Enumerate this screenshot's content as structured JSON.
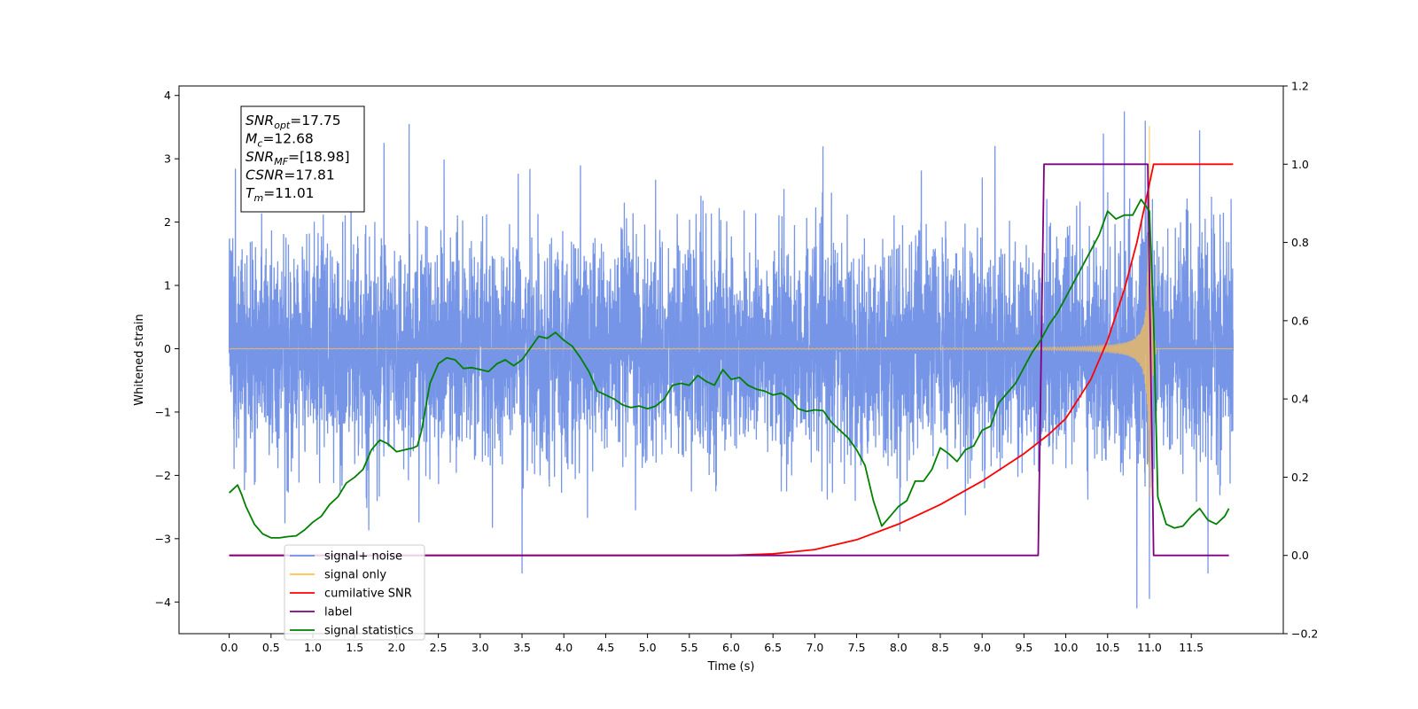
{
  "chart_data": {
    "type": "line",
    "xlabel": "Time (s)",
    "ylabel": "Whitened strain",
    "xlim": [
      -0.6,
      12.6
    ],
    "ylim": [
      -4.5,
      4.15
    ],
    "y2lim": [
      -0.2,
      1.2
    ],
    "x_ticks": [
      "0.0",
      "0.5",
      "1.0",
      "1.5",
      "2.0",
      "2.5",
      "3.0",
      "3.5",
      "4.0",
      "4.5",
      "5.0",
      "5.5",
      "6.0",
      "6.5",
      "7.0",
      "7.5",
      "8.0",
      "8.5",
      "9.0",
      "9.5",
      "10.0",
      "10.5",
      "11.0",
      "11.5"
    ],
    "y_ticks": [
      "4",
      "3",
      "2",
      "1",
      "0",
      "−1",
      "−2",
      "−3",
      "−4"
    ],
    "y2_ticks": [
      "1.2",
      "1.0",
      "0.8",
      "0.6",
      "0.4",
      "0.2",
      "0.0",
      "−0.2"
    ],
    "grid": false,
    "legend_position": "bottom-left",
    "info_box": [
      {
        "sym": "SNR",
        "sub": "opt",
        "value": "=17.75"
      },
      {
        "sym": "M",
        "sub": "c",
        "value": "=12.68"
      },
      {
        "sym": "SNR",
        "sub": "MF",
        "value": "=[18.98]"
      },
      {
        "sym": "CSNR",
        "sub": "",
        "value": "=17.81"
      },
      {
        "sym": "T",
        "sub": "m",
        "value": "=11.01"
      }
    ],
    "legend": [
      {
        "label": "signal+ noise",
        "color": "#6f8fe6"
      },
      {
        "label": "signal only",
        "color": "#ffc04d"
      },
      {
        "label": "cumilative SNR",
        "color": "#ff0000"
      },
      {
        "label": "label",
        "color": "#800080"
      },
      {
        "label": "signal statistics",
        "color": "#008000"
      }
    ],
    "series": [
      {
        "name": "signal+ noise",
        "axis": "left",
        "color": "#6f8fe6",
        "x_range": [
          0.0,
          12.0
        ],
        "noise_std": 0.85,
        "spikes": [
          {
            "x": 3.5,
            "y": -3.55
          },
          {
            "x": 10.85,
            "y": -4.1
          },
          {
            "x": 10.7,
            "y": 3.75
          },
          {
            "x": 11.0,
            "y": -3.95
          },
          {
            "x": 11.7,
            "y": -3.55
          },
          {
            "x": 2.15,
            "y": 3.55
          },
          {
            "x": 10.95,
            "y": 3.6
          },
          {
            "x": 11.6,
            "y": 3.45
          },
          {
            "x": 1.85,
            "y": 3.25
          },
          {
            "x": 10.45,
            "y": 3.4
          }
        ]
      },
      {
        "name": "signal only",
        "axis": "left",
        "color": "#ffc04d",
        "model": "chirp",
        "merger_time": 11.0,
        "peak_amplitude": 3.6
      },
      {
        "name": "cumilative SNR",
        "axis": "right",
        "color": "#ff0000",
        "x": [
          0.0,
          6.0,
          6.5,
          7.0,
          7.5,
          8.0,
          8.5,
          9.0,
          9.5,
          9.8,
          10.0,
          10.3,
          10.5,
          10.7,
          10.85,
          10.95,
          11.0,
          11.05,
          12.0
        ],
        "y": [
          0.0,
          0.0,
          0.004,
          0.015,
          0.04,
          0.08,
          0.13,
          0.19,
          0.26,
          0.31,
          0.35,
          0.45,
          0.55,
          0.68,
          0.8,
          0.9,
          0.95,
          1.0,
          1.0
        ]
      },
      {
        "name": "label",
        "axis": "right",
        "color": "#800080",
        "x": [
          0.0,
          9.67,
          9.74,
          10.98,
          11.05,
          11.95
        ],
        "y": [
          0.0,
          0.0,
          1.0,
          1.0,
          0.0,
          0.0
        ]
      },
      {
        "name": "signal statistics",
        "axis": "right",
        "color": "#008000",
        "x": [
          0.0,
          0.05,
          0.1,
          0.15,
          0.2,
          0.3,
          0.4,
          0.5,
          0.6,
          0.7,
          0.8,
          0.9,
          1.0,
          1.1,
          1.2,
          1.3,
          1.4,
          1.5,
          1.6,
          1.7,
          1.8,
          1.9,
          2.0,
          2.1,
          2.2,
          2.25,
          2.3,
          2.35,
          2.4,
          2.5,
          2.6,
          2.7,
          2.8,
          2.9,
          3.0,
          3.1,
          3.2,
          3.3,
          3.4,
          3.5,
          3.6,
          3.7,
          3.8,
          3.9,
          4.0,
          4.1,
          4.2,
          4.3,
          4.4,
          4.5,
          4.6,
          4.7,
          4.8,
          4.9,
          5.0,
          5.1,
          5.2,
          5.3,
          5.4,
          5.5,
          5.6,
          5.7,
          5.8,
          5.9,
          6.0,
          6.1,
          6.2,
          6.3,
          6.4,
          6.5,
          6.6,
          6.7,
          6.8,
          6.9,
          7.0,
          7.1,
          7.2,
          7.3,
          7.4,
          7.5,
          7.6,
          7.7,
          7.8,
          7.9,
          8.0,
          8.1,
          8.2,
          8.3,
          8.4,
          8.5,
          8.6,
          8.7,
          8.8,
          8.9,
          9.0,
          9.1,
          9.2,
          9.3,
          9.4,
          9.5,
          9.6,
          9.7,
          9.8,
          9.9,
          10.0,
          10.1,
          10.2,
          10.3,
          10.4,
          10.5,
          10.6,
          10.7,
          10.8,
          10.9,
          11.0,
          11.05,
          11.1,
          11.2,
          11.3,
          11.4,
          11.5,
          11.6,
          11.7,
          11.8,
          11.9,
          11.95
        ],
        "y": [
          0.16,
          0.17,
          0.18,
          0.155,
          0.125,
          0.08,
          0.055,
          0.045,
          0.045,
          0.048,
          0.05,
          0.065,
          0.085,
          0.1,
          0.13,
          0.15,
          0.185,
          0.2,
          0.22,
          0.27,
          0.295,
          0.285,
          0.265,
          0.27,
          0.275,
          0.28,
          0.32,
          0.38,
          0.44,
          0.49,
          0.505,
          0.5,
          0.478,
          0.48,
          0.475,
          0.47,
          0.49,
          0.5,
          0.485,
          0.5,
          0.53,
          0.56,
          0.555,
          0.57,
          0.55,
          0.535,
          0.505,
          0.47,
          0.42,
          0.41,
          0.4,
          0.385,
          0.378,
          0.382,
          0.375,
          0.382,
          0.4,
          0.435,
          0.44,
          0.435,
          0.46,
          0.445,
          0.435,
          0.475,
          0.45,
          0.455,
          0.435,
          0.425,
          0.42,
          0.41,
          0.415,
          0.4,
          0.375,
          0.368,
          0.372,
          0.37,
          0.34,
          0.32,
          0.3,
          0.27,
          0.23,
          0.14,
          0.075,
          0.1,
          0.125,
          0.14,
          0.19,
          0.19,
          0.22,
          0.275,
          0.26,
          0.24,
          0.27,
          0.28,
          0.32,
          0.33,
          0.39,
          0.415,
          0.44,
          0.48,
          0.52,
          0.55,
          0.59,
          0.62,
          0.66,
          0.7,
          0.74,
          0.78,
          0.82,
          0.88,
          0.86,
          0.87,
          0.87,
          0.91,
          0.88,
          0.6,
          0.15,
          0.08,
          0.07,
          0.075,
          0.1,
          0.12,
          0.09,
          0.08,
          0.1,
          0.12
        ]
      }
    ]
  }
}
